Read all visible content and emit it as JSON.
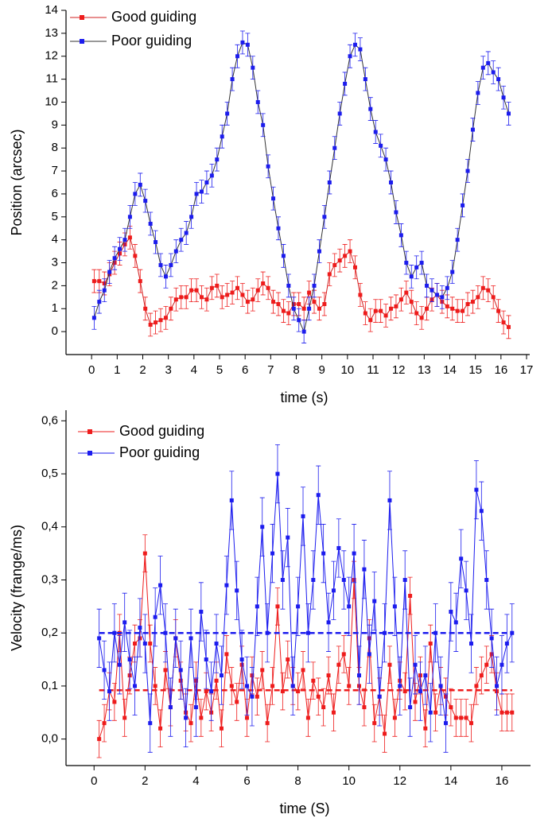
{
  "chart_data": [
    {
      "type": "line",
      "x": [
        0.1,
        0.3,
        0.5,
        0.7,
        0.9,
        1.1,
        1.3,
        1.5,
        1.7,
        1.9,
        2.1,
        2.3,
        2.5,
        2.7,
        2.9,
        3.1,
        3.3,
        3.5,
        3.7,
        3.9,
        4.1,
        4.3,
        4.5,
        4.7,
        4.9,
        5.1,
        5.3,
        5.5,
        5.7,
        5.9,
        6.1,
        6.3,
        6.5,
        6.7,
        6.9,
        7.1,
        7.3,
        7.5,
        7.7,
        7.9,
        8.1,
        8.3,
        8.5,
        8.7,
        8.9,
        9.1,
        9.3,
        9.5,
        9.7,
        9.9,
        10.1,
        10.3,
        10.5,
        10.7,
        10.9,
        11.1,
        11.3,
        11.5,
        11.7,
        11.9,
        12.1,
        12.3,
        12.5,
        12.7,
        12.9,
        13.1,
        13.3,
        13.5,
        13.7,
        13.9,
        14.1,
        14.3,
        14.5,
        14.7,
        14.9,
        15.1,
        15.3,
        15.5,
        15.7,
        15.9,
        16.1,
        16.3
      ],
      "series": [
        {
          "name": "Good guiding",
          "color": "#ee1c1c",
          "line_color": "#d02020",
          "error": 0.5,
          "values": [
            2.2,
            2.2,
            2.1,
            2.5,
            3.0,
            3.4,
            3.8,
            4.1,
            3.3,
            2.2,
            1.0,
            0.3,
            0.4,
            0.5,
            0.6,
            1.0,
            1.4,
            1.5,
            1.5,
            1.8,
            1.8,
            1.5,
            1.4,
            1.9,
            2.0,
            1.5,
            1.6,
            1.7,
            1.9,
            1.6,
            1.3,
            1.4,
            1.8,
            2.1,
            1.9,
            1.3,
            1.2,
            0.9,
            0.8,
            1.2,
            1.2,
            1.0,
            1.7,
            1.3,
            1.0,
            1.2,
            2.5,
            2.9,
            3.1,
            3.3,
            3.5,
            2.8,
            1.6,
            0.8,
            0.5,
            0.9,
            0.9,
            0.7,
            1.0,
            1.1,
            1.4,
            1.7,
            1.3,
            0.8,
            0.6,
            1.0,
            1.4,
            1.6,
            1.3,
            1.1,
            1.0,
            0.9,
            0.9,
            1.2,
            1.3,
            1.5,
            1.9,
            1.8,
            1.5,
            0.9,
            0.4,
            0.2
          ]
        },
        {
          "name": "Poor guiding",
          "color": "#1c1cee",
          "line_color": "#333333",
          "error": 0.5,
          "values": [
            0.6,
            1.3,
            1.8,
            2.6,
            3.2,
            3.6,
            4.0,
            5.0,
            6.0,
            6.4,
            5.7,
            4.7,
            3.9,
            2.9,
            2.4,
            2.9,
            3.5,
            4.0,
            4.3,
            5.0,
            6.0,
            6.1,
            6.5,
            6.8,
            7.5,
            8.5,
            9.5,
            11.0,
            12.0,
            12.6,
            12.5,
            11.5,
            10.0,
            9.0,
            7.2,
            5.8,
            4.5,
            3.3,
            2.0,
            1.0,
            0.5,
            0.0,
            1.0,
            2.0,
            3.5,
            5.0,
            6.5,
            8.0,
            9.5,
            10.8,
            12.0,
            12.5,
            12.3,
            11.0,
            9.7,
            8.7,
            8.1,
            7.5,
            6.5,
            5.2,
            4.2,
            3.0,
            2.4,
            2.8,
            3.0,
            2.0,
            1.8,
            1.6,
            1.5,
            1.9,
            2.6,
            4.0,
            5.5,
            7.0,
            8.8,
            10.4,
            11.5,
            11.7,
            11.3,
            11.0,
            10.2,
            9.5
          ]
        }
      ],
      "x_label": "time (s)",
      "y_label": "Position (arcsec)",
      "xlim": [
        -1,
        17
      ],
      "ylim": [
        -1,
        14
      ],
      "xticks": [
        0,
        1,
        2,
        3,
        4,
        5,
        6,
        7,
        8,
        9,
        10,
        11,
        12,
        13,
        14,
        15,
        16,
        17
      ],
      "yticks": [
        0,
        1,
        2,
        3,
        4,
        5,
        6,
        7,
        8,
        9,
        10,
        11,
        12,
        13,
        14
      ],
      "legend": "upper left"
    },
    {
      "type": "line",
      "x": [
        0.2,
        0.4,
        0.6,
        0.8,
        1.0,
        1.2,
        1.4,
        1.6,
        1.8,
        2.0,
        2.2,
        2.4,
        2.6,
        2.8,
        3.0,
        3.2,
        3.4,
        3.6,
        3.8,
        4.0,
        4.2,
        4.4,
        4.6,
        4.8,
        5.0,
        5.2,
        5.4,
        5.6,
        5.8,
        6.0,
        6.2,
        6.4,
        6.6,
        6.8,
        7.0,
        7.2,
        7.4,
        7.6,
        7.8,
        8.0,
        8.2,
        8.4,
        8.6,
        8.8,
        9.0,
        9.2,
        9.4,
        9.6,
        9.8,
        10.0,
        10.2,
        10.4,
        10.6,
        10.8,
        11.0,
        11.2,
        11.4,
        11.6,
        11.8,
        12.0,
        12.2,
        12.4,
        12.6,
        12.8,
        13.0,
        13.2,
        13.4,
        13.6,
        13.8,
        14.0,
        14.2,
        14.4,
        14.6,
        14.8,
        15.0,
        15.2,
        15.4,
        15.6,
        15.8,
        16.0,
        16.2,
        16.4
      ],
      "series": [
        {
          "name": "Good guiding",
          "color": "#ee1c1c",
          "line_color": "#ee1c1c",
          "error": 0.035,
          "mean": 0.092,
          "values": [
            0.0,
            0.03,
            0.09,
            0.07,
            0.2,
            0.04,
            0.12,
            0.18,
            0.19,
            0.35,
            0.18,
            0.1,
            0.02,
            0.13,
            0.06,
            0.19,
            0.11,
            0.05,
            0.03,
            0.11,
            0.04,
            0.09,
            0.05,
            0.11,
            0.02,
            0.16,
            0.1,
            0.07,
            0.14,
            0.04,
            0.12,
            0.08,
            0.13,
            0.03,
            0.1,
            0.25,
            0.09,
            0.15,
            0.1,
            0.09,
            0.13,
            0.04,
            0.11,
            0.08,
            0.06,
            0.12,
            0.05,
            0.14,
            0.16,
            0.1,
            0.3,
            0.1,
            0.06,
            0.19,
            0.03,
            0.08,
            0.01,
            0.14,
            0.04,
            0.11,
            0.09,
            0.27,
            0.07,
            0.12,
            0.02,
            0.18,
            0.05,
            0.1,
            0.08,
            0.06,
            0.04,
            0.04,
            0.04,
            0.03,
            0.1,
            0.12,
            0.14,
            0.16,
            0.09,
            0.05,
            0.05,
            0.05
          ]
        },
        {
          "name": "Poor guiding",
          "color": "#1c1cee",
          "line_color": "#1c1cee",
          "error": 0.055,
          "mean": 0.2,
          "values": [
            0.19,
            0.13,
            0.09,
            0.2,
            0.14,
            0.22,
            0.15,
            0.1,
            0.21,
            0.18,
            0.03,
            0.23,
            0.29,
            0.2,
            0.06,
            0.19,
            0.13,
            0.04,
            0.19,
            0.06,
            0.24,
            0.15,
            0.09,
            0.18,
            0.12,
            0.29,
            0.45,
            0.28,
            0.15,
            0.1,
            0.08,
            0.25,
            0.4,
            0.2,
            0.35,
            0.5,
            0.3,
            0.38,
            0.1,
            0.25,
            0.42,
            0.2,
            0.3,
            0.46,
            0.35,
            0.22,
            0.28,
            0.36,
            0.3,
            0.25,
            0.35,
            0.12,
            0.32,
            0.16,
            0.26,
            0.08,
            0.2,
            0.45,
            0.25,
            0.1,
            0.3,
            0.06,
            0.14,
            0.09,
            0.12,
            0.05,
            0.2,
            0.1,
            0.03,
            0.24,
            0.22,
            0.34,
            0.28,
            0.18,
            0.47,
            0.43,
            0.3,
            0.19,
            0.1,
            0.14,
            0.18,
            0.2
          ]
        }
      ],
      "x_label": "time (S)",
      "y_label": "Velocity (frange/ms)",
      "xlim": [
        -1.1,
        17
      ],
      "ylim": [
        -0.05,
        0.62
      ],
      "xticks": [
        0,
        2,
        4,
        6,
        8,
        10,
        12,
        14,
        16
      ],
      "yticks": [
        {
          "value": 0,
          "label": "0,0"
        },
        {
          "value": 0.1,
          "label": "0,1"
        },
        {
          "value": 0.2,
          "label": "0,2"
        },
        {
          "value": 0.3,
          "label": "0,3"
        },
        {
          "value": 0.4,
          "label": "0,4"
        },
        {
          "value": 0.5,
          "label": "0,5"
        },
        {
          "value": 0.6,
          "label": "0,6"
        }
      ],
      "legend": "upper left"
    }
  ]
}
